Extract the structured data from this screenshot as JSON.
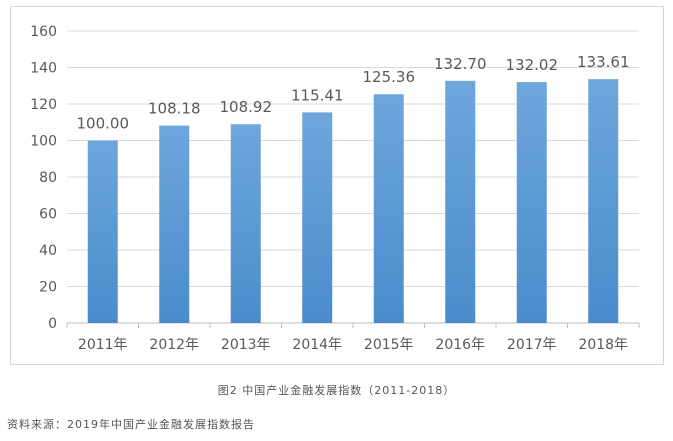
{
  "chart_data": {
    "type": "bar",
    "categories": [
      "2011年",
      "2012年",
      "2013年",
      "2014年",
      "2015年",
      "2016年",
      "2017年",
      "2018年"
    ],
    "values": [
      100.0,
      108.18,
      108.92,
      115.41,
      125.36,
      132.7,
      132.02,
      133.61
    ],
    "value_labels": [
      "100.00",
      "108.18",
      "108.92",
      "115.41",
      "125.36",
      "132.70",
      "132.02",
      "133.61"
    ],
    "yticks": [
      0,
      20,
      40,
      60,
      80,
      100,
      120,
      140,
      160
    ],
    "ylim": [
      0,
      160
    ],
    "grid": true,
    "legend": "none",
    "bar_color": "#5b9bd5"
  },
  "caption": "图2 中国产业金融发展指数（2011-2018）",
  "source": "资料来源：2019年中国产业金融发展指数报告"
}
